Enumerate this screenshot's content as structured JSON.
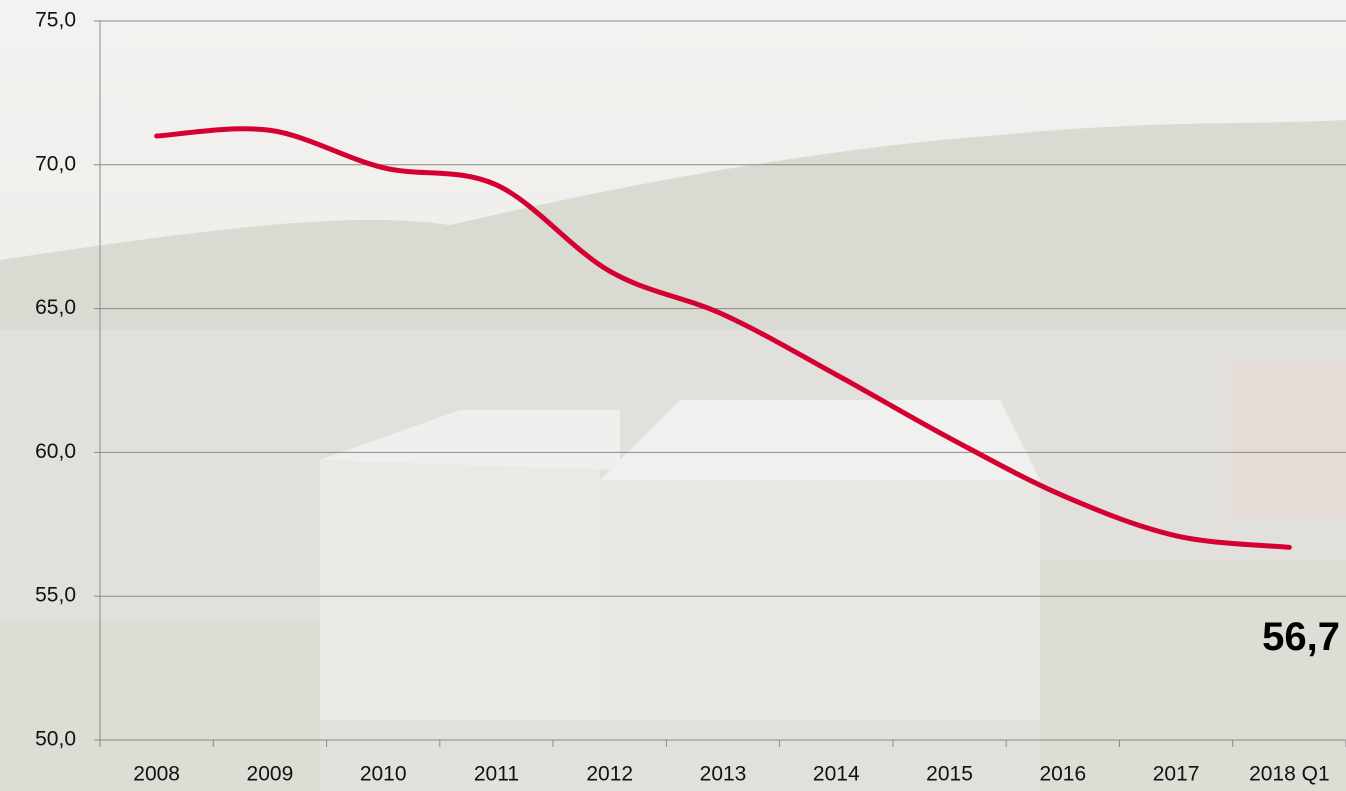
{
  "chart_data": {
    "type": "line",
    "categories": [
      "2008",
      "2009",
      "2010",
      "2011",
      "2012",
      "2013",
      "2014",
      "2015",
      "2016",
      "2017",
      "2018 Q1"
    ],
    "series": [
      {
        "color": "#d50032",
        "values": [
          71.0,
          71.2,
          69.9,
          69.3,
          66.3,
          64.8,
          62.7,
          60.5,
          58.5,
          57.1,
          56.7
        ],
        "value_labels": [
          null,
          null,
          null,
          null,
          null,
          null,
          null,
          null,
          null,
          null,
          "56,7"
        ]
      }
    ],
    "ylim": [
      50,
      75
    ],
    "yticks": [
      {
        "value": 50,
        "label": "50,0"
      },
      {
        "value": 55,
        "label": "55,0"
      },
      {
        "value": 60,
        "label": "60,0"
      },
      {
        "value": 65,
        "label": "65,0"
      },
      {
        "value": 70,
        "label": "70,0"
      },
      {
        "value": 75,
        "label": "75,0"
      }
    ],
    "grid": true
  }
}
